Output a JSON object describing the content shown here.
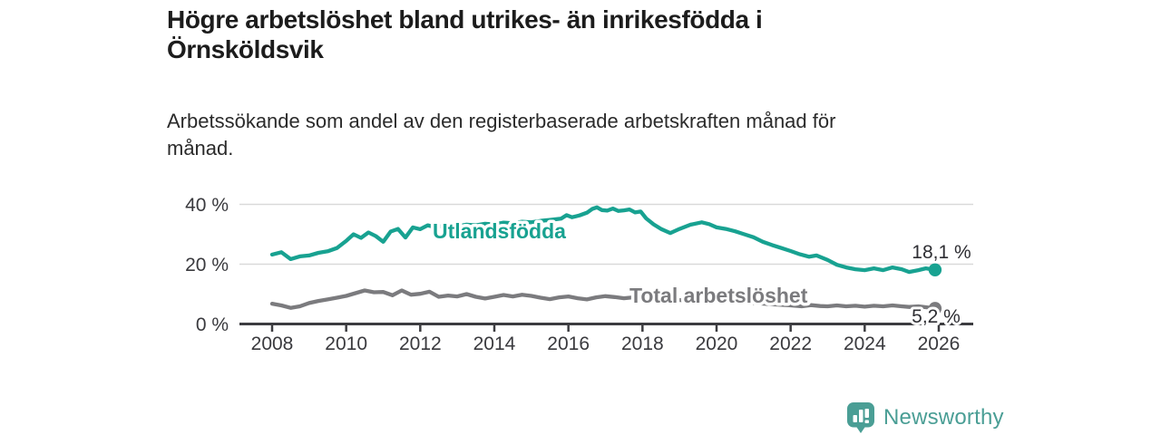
{
  "header": {
    "title_lines": [
      "Högre arbetslöshet bland utrikes- än inrikesfödda i",
      "Örnsköldsvik"
    ],
    "subtitle_lines": [
      "Arbetssökande som andel av den registerbaserade arbetskraften månad för",
      "månad."
    ]
  },
  "branding": {
    "logo_text": "Newsworthy",
    "logo_color": "#4a9e95",
    "logo_icon": "speech-bubble-bar-chart-icon"
  },
  "colors": {
    "foreign_born_line": "#18a291",
    "total_line": "#7b7b7e",
    "axis": "#3c3c40",
    "gridline": "#d9d9d9",
    "tick_text": "#3a3a3e",
    "value_text": "#2e2e33"
  },
  "chart_data": {
    "type": "line",
    "unit": "%",
    "grid": "horizontal",
    "x_axis": {
      "ticks": [
        2008,
        2010,
        2012,
        2014,
        2016,
        2018,
        2020,
        2022,
        2024,
        2026
      ]
    },
    "y_axis": {
      "ticks": [
        0,
        20,
        40
      ],
      "tick_labels": [
        "0 %",
        "20 %",
        "40 %"
      ],
      "range": [
        0,
        44
      ]
    },
    "series": [
      {
        "name": "Utlandsfödda",
        "color": "#18a291",
        "end_label": "18,1 %",
        "end_value": 18.1,
        "points": [
          [
            2008.0,
            23.2
          ],
          [
            2008.25,
            24.0
          ],
          [
            2008.5,
            21.7
          ],
          [
            2008.75,
            22.6
          ],
          [
            2009.0,
            22.9
          ],
          [
            2009.25,
            23.8
          ],
          [
            2009.5,
            24.3
          ],
          [
            2009.75,
            25.4
          ],
          [
            2010.0,
            27.8
          ],
          [
            2010.2,
            30.0
          ],
          [
            2010.4,
            28.8
          ],
          [
            2010.6,
            30.6
          ],
          [
            2010.8,
            29.4
          ],
          [
            2011.0,
            27.5
          ],
          [
            2011.2,
            30.9
          ],
          [
            2011.4,
            31.8
          ],
          [
            2011.6,
            28.9
          ],
          [
            2011.8,
            32.3
          ],
          [
            2012.0,
            31.7
          ],
          [
            2012.2,
            33.0
          ],
          [
            2012.4,
            32.4
          ],
          [
            2012.6,
            32.8
          ],
          [
            2012.8,
            33.0
          ],
          [
            2013.0,
            32.7
          ],
          [
            2013.25,
            33.2
          ],
          [
            2013.5,
            33.0
          ],
          [
            2013.75,
            33.5
          ],
          [
            2014.0,
            33.3
          ],
          [
            2014.25,
            33.9
          ],
          [
            2014.5,
            33.7
          ],
          [
            2014.75,
            34.2
          ],
          [
            2015.0,
            34.0
          ],
          [
            2015.25,
            34.5
          ],
          [
            2015.5,
            34.8
          ],
          [
            2015.8,
            35.2
          ],
          [
            2015.95,
            36.4
          ],
          [
            2016.1,
            35.7
          ],
          [
            2016.3,
            36.3
          ],
          [
            2016.5,
            37.2
          ],
          [
            2016.65,
            38.5
          ],
          [
            2016.77,
            39.0
          ],
          [
            2016.9,
            38.1
          ],
          [
            2017.05,
            37.9
          ],
          [
            2017.2,
            38.6
          ],
          [
            2017.35,
            37.8
          ],
          [
            2017.5,
            38.0
          ],
          [
            2017.65,
            38.3
          ],
          [
            2017.8,
            37.3
          ],
          [
            2017.95,
            37.6
          ],
          [
            2018.1,
            35.3
          ],
          [
            2018.3,
            33.3
          ],
          [
            2018.5,
            31.8
          ],
          [
            2018.75,
            30.4
          ],
          [
            2019.0,
            31.8
          ],
          [
            2019.3,
            33.2
          ],
          [
            2019.6,
            34.0
          ],
          [
            2019.8,
            33.4
          ],
          [
            2020.0,
            32.3
          ],
          [
            2020.25,
            31.8
          ],
          [
            2020.5,
            31.0
          ],
          [
            2020.75,
            30.0
          ],
          [
            2021.0,
            29.0
          ],
          [
            2021.25,
            27.5
          ],
          [
            2021.5,
            26.4
          ],
          [
            2021.75,
            25.4
          ],
          [
            2022.0,
            24.4
          ],
          [
            2022.25,
            23.3
          ],
          [
            2022.5,
            22.5
          ],
          [
            2022.7,
            22.9
          ],
          [
            2023.0,
            21.4
          ],
          [
            2023.25,
            19.8
          ],
          [
            2023.5,
            18.9
          ],
          [
            2023.75,
            18.3
          ],
          [
            2024.0,
            18.0
          ],
          [
            2024.25,
            18.6
          ],
          [
            2024.5,
            18.0
          ],
          [
            2024.75,
            18.9
          ],
          [
            2025.0,
            18.3
          ],
          [
            2025.2,
            17.4
          ],
          [
            2025.45,
            18.0
          ],
          [
            2025.65,
            18.6
          ],
          [
            2025.9,
            18.1
          ]
        ]
      },
      {
        "name": "Total arbetslöshet",
        "color": "#7b7b7e",
        "end_label": "5,2 %",
        "end_value": 5.2,
        "points": [
          [
            2008.0,
            6.8
          ],
          [
            2008.25,
            6.2
          ],
          [
            2008.5,
            5.4
          ],
          [
            2008.75,
            5.9
          ],
          [
            2009.0,
            7.0
          ],
          [
            2009.25,
            7.7
          ],
          [
            2009.5,
            8.2
          ],
          [
            2009.75,
            8.8
          ],
          [
            2010.0,
            9.4
          ],
          [
            2010.25,
            10.3
          ],
          [
            2010.5,
            11.2
          ],
          [
            2010.75,
            10.6
          ],
          [
            2011.0,
            10.7
          ],
          [
            2011.25,
            9.6
          ],
          [
            2011.5,
            11.2
          ],
          [
            2011.75,
            9.8
          ],
          [
            2012.0,
            10.1
          ],
          [
            2012.25,
            10.8
          ],
          [
            2012.5,
            9.1
          ],
          [
            2012.75,
            9.5
          ],
          [
            2013.0,
            9.2
          ],
          [
            2013.25,
            10.0
          ],
          [
            2013.5,
            9.1
          ],
          [
            2013.75,
            8.5
          ],
          [
            2014.0,
            9.1
          ],
          [
            2014.25,
            9.7
          ],
          [
            2014.5,
            9.2
          ],
          [
            2014.75,
            9.8
          ],
          [
            2015.0,
            9.4
          ],
          [
            2015.25,
            8.8
          ],
          [
            2015.5,
            8.3
          ],
          [
            2015.75,
            8.9
          ],
          [
            2016.0,
            9.2
          ],
          [
            2016.25,
            8.6
          ],
          [
            2016.5,
            8.2
          ],
          [
            2016.75,
            8.9
          ],
          [
            2017.0,
            9.3
          ],
          [
            2017.25,
            9.0
          ],
          [
            2017.5,
            8.6
          ],
          [
            2017.75,
            8.9
          ],
          [
            2018.0,
            9.0
          ],
          [
            2018.5,
            8.4
          ],
          [
            2019.0,
            8.0
          ],
          [
            2019.5,
            7.7
          ],
          [
            2020.0,
            7.9
          ],
          [
            2020.5,
            7.4
          ],
          [
            2021.0,
            7.0
          ],
          [
            2021.5,
            6.6
          ],
          [
            2022.0,
            6.2
          ],
          [
            2022.3,
            5.9
          ],
          [
            2022.55,
            6.3
          ],
          [
            2022.8,
            6.0
          ],
          [
            2023.0,
            5.9
          ],
          [
            2023.25,
            6.2
          ],
          [
            2023.5,
            5.9
          ],
          [
            2023.75,
            6.1
          ],
          [
            2024.0,
            5.8
          ],
          [
            2024.25,
            6.1
          ],
          [
            2024.5,
            5.9
          ],
          [
            2024.75,
            6.2
          ],
          [
            2025.0,
            5.9
          ],
          [
            2025.2,
            5.7
          ],
          [
            2025.45,
            5.9
          ],
          [
            2025.65,
            5.6
          ],
          [
            2025.9,
            5.2
          ]
        ]
      }
    ]
  }
}
